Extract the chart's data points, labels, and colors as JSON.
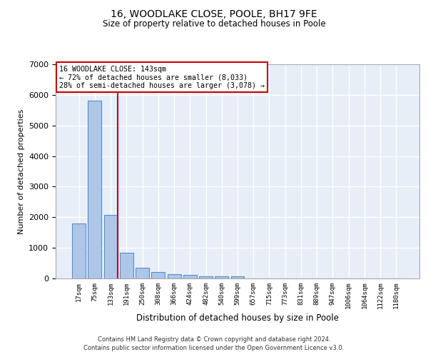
{
  "title_line1": "16, WOODLAKE CLOSE, POOLE, BH17 9FE",
  "title_line2": "Size of property relative to detached houses in Poole",
  "xlabel": "Distribution of detached houses by size in Poole",
  "ylabel": "Number of detached properties",
  "categories": [
    "17sqm",
    "75sqm",
    "133sqm",
    "191sqm",
    "250sqm",
    "308sqm",
    "366sqm",
    "424sqm",
    "482sqm",
    "540sqm",
    "599sqm",
    "657sqm",
    "715sqm",
    "773sqm",
    "831sqm",
    "889sqm",
    "947sqm",
    "1006sqm",
    "1064sqm",
    "1122sqm",
    "1180sqm"
  ],
  "values": [
    1800,
    5800,
    2080,
    830,
    340,
    220,
    130,
    110,
    80,
    70,
    70,
    0,
    0,
    0,
    0,
    0,
    0,
    0,
    0,
    0,
    0
  ],
  "bar_color": "#aec6e8",
  "bar_edge_color": "#5a8fc2",
  "vline_x_index": 2,
  "vline_color": "#cc0000",
  "annotation_text": "16 WOODLAKE CLOSE: 143sqm\n← 72% of detached houses are smaller (8,033)\n28% of semi-detached houses are larger (3,078) →",
  "annotation_box_edgecolor": "#cc0000",
  "annotation_box_facecolor": "#ffffff",
  "ylim": [
    0,
    7000
  ],
  "yticks": [
    0,
    1000,
    2000,
    3000,
    4000,
    5000,
    6000,
    7000
  ],
  "background_color": "#e8eef8",
  "grid_color": "#ffffff",
  "footer_line1": "Contains HM Land Registry data © Crown copyright and database right 2024.",
  "footer_line2": "Contains public sector information licensed under the Open Government Licence v3.0."
}
